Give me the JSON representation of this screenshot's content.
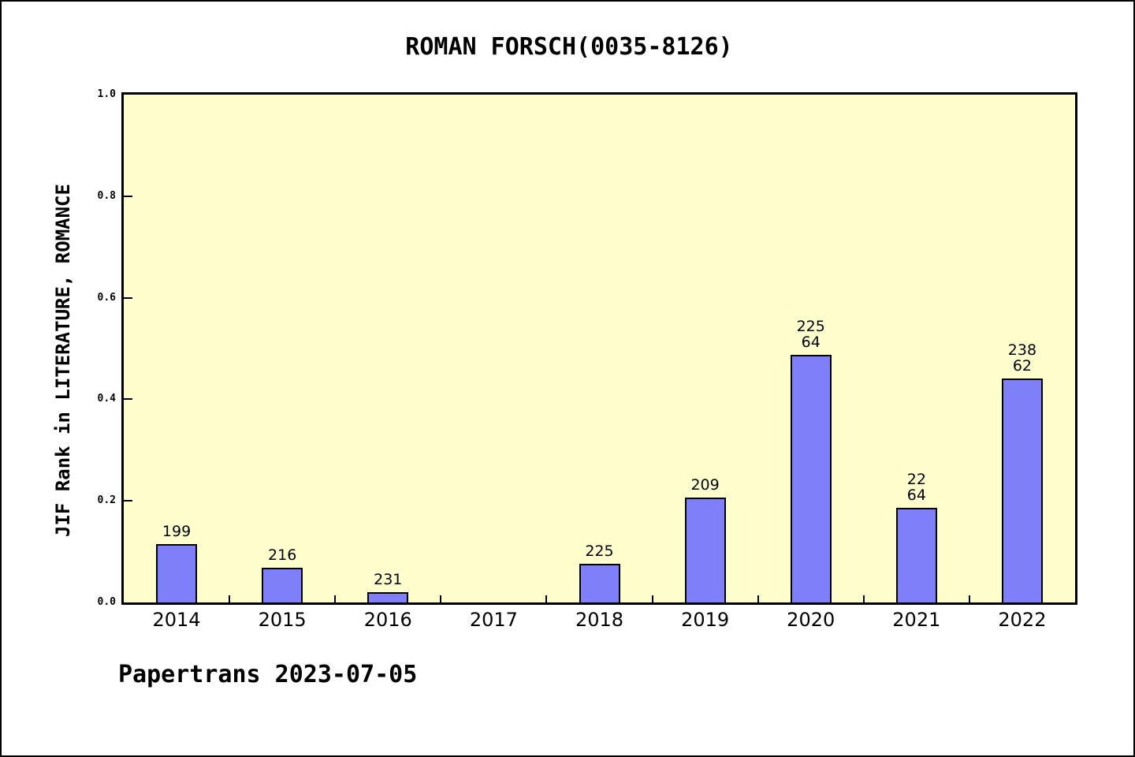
{
  "page": {
    "background": "#FFFFFF",
    "border_color": "#000000"
  },
  "chart_data": {
    "type": "bar",
    "title": "ROMAN FORSCH(0035-8126)",
    "xlabel": "",
    "ylabel": "JIF Rank in LITERATURE, ROMANCE",
    "categories": [
      "2014",
      "2015",
      "2016",
      "2017",
      "2018",
      "2019",
      "2020",
      "2021",
      "2022"
    ],
    "values": [
      0.115,
      0.068,
      0.02,
      0,
      0.076,
      0.206,
      0.487,
      0.186,
      0.441
    ],
    "bar_labels": [
      [
        "199"
      ],
      [
        "216"
      ],
      [
        "231"
      ],
      [],
      [
        "225"
      ],
      [
        "209"
      ],
      [
        "225",
        "64"
      ],
      [
        "22",
        "64"
      ],
      [
        "238",
        "62"
      ]
    ],
    "ylim": [
      0,
      1
    ],
    "yticks": [
      {
        "value": 1.0,
        "label": "1.0"
      },
      {
        "value": 0.8,
        "label": "0.8"
      },
      {
        "value": 0.6,
        "label": "0.6"
      },
      {
        "value": 0.4,
        "label": "0.4"
      },
      {
        "value": 0.2,
        "label": "0.2"
      },
      {
        "value": 0.0,
        "label": "0.0"
      }
    ],
    "grid": false,
    "legend": "none",
    "colors": {
      "bar_fill": "#7F7FF9",
      "bar_edge": "#000000",
      "plot_background": "#FEFECC",
      "axis": "#000000",
      "text": "#000000"
    }
  },
  "footer": {
    "text": "Papertrans 2023-07-05"
  }
}
